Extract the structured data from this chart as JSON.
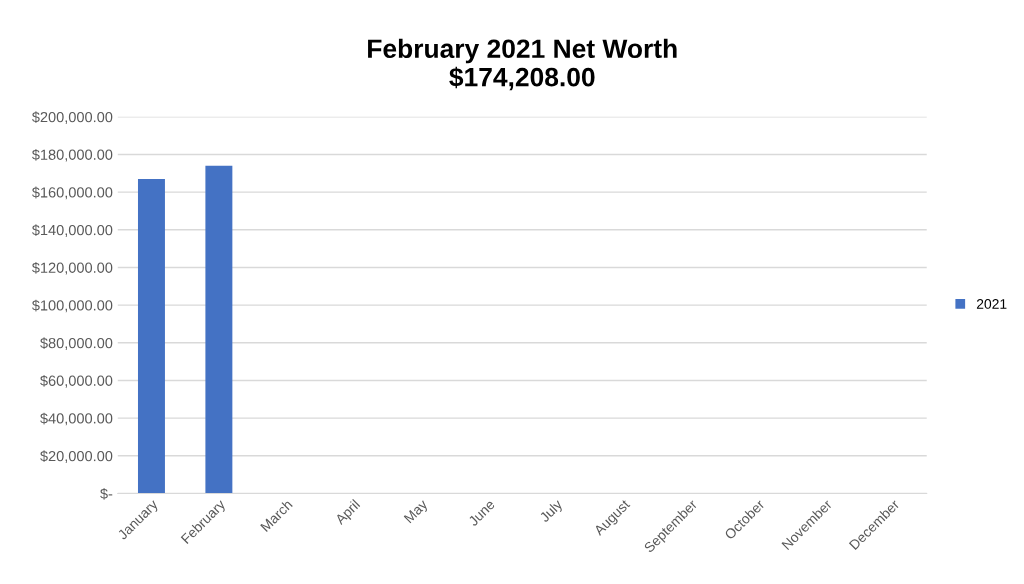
{
  "chart_data": {
    "type": "bar",
    "title": "February 2021 Net Worth\n$174,208.00",
    "categories": [
      "January",
      "February",
      "March",
      "April",
      "May",
      "June",
      "July",
      "August",
      "September",
      "October",
      "November",
      "December"
    ],
    "series": [
      {
        "name": "2021",
        "color": "#4472c4",
        "values": [
          167000,
          174000,
          null,
          null,
          null,
          null,
          null,
          null,
          null,
          null,
          null,
          null
        ]
      }
    ],
    "ylim": [
      0,
      200000
    ],
    "yticks": [
      {
        "value": 0,
        "label": "$-"
      },
      {
        "value": 20000,
        "label": "$20,000.00"
      },
      {
        "value": 40000,
        "label": "$40,000.00"
      },
      {
        "value": 60000,
        "label": "$60,000.00"
      },
      {
        "value": 80000,
        "label": "$80,000.00"
      },
      {
        "value": 100000,
        "label": "$100,000.00"
      },
      {
        "value": 120000,
        "label": "$120,000.00"
      },
      {
        "value": 140000,
        "label": "$140,000.00"
      },
      {
        "value": 160000,
        "label": "$160,000.00"
      },
      {
        "value": 180000,
        "label": "$180,000.00"
      },
      {
        "value": 200000,
        "label": "$200,000.00"
      }
    ],
    "grid": "y",
    "legend": "right"
  }
}
